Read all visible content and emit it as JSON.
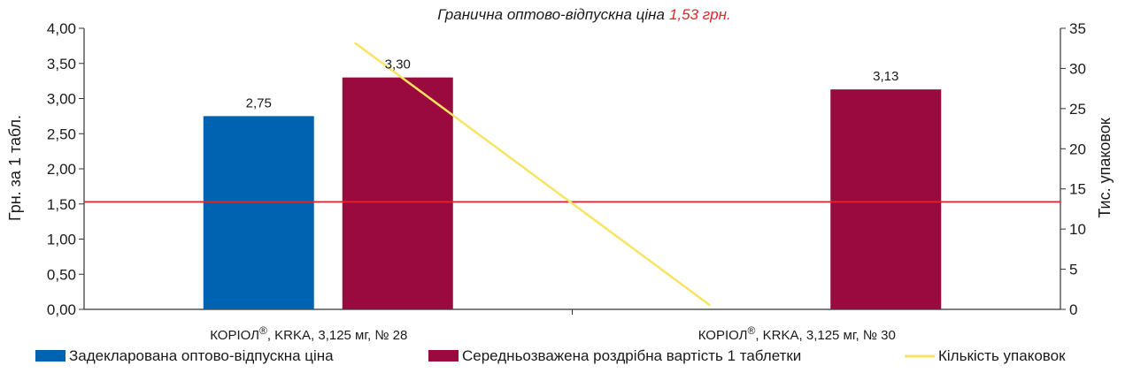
{
  "chart_data": {
    "type": "bar",
    "title": "Гранична оптово-відпускна ціна",
    "title_value": "1,53 грн.",
    "title_value_color": "#e8202a",
    "ylabel": "Грн. за 1 табл.",
    "y2label": "Тис. упаковок",
    "ylim": [
      0,
      4
    ],
    "y2lim": [
      0,
      35
    ],
    "y_ticks": [
      "0,00",
      "0,50",
      "1,00",
      "1,50",
      "2,00",
      "2,50",
      "3,00",
      "3,50",
      "4,00"
    ],
    "y2_ticks": [
      "0",
      "5",
      "10",
      "15",
      "20",
      "25",
      "30",
      "35"
    ],
    "categories": [
      {
        "name": "КОРІОЛ",
        "mark": "®",
        "rest": ", KRKA, 3,125 мг, № 28"
      },
      {
        "name": "КОРІОЛ",
        "mark": "®",
        "rest": ", KRKA, 3,125 мг, № 30"
      }
    ],
    "series": [
      {
        "name": "Задекларована оптово-відпускна ціна",
        "kind": "bar",
        "axis": "left",
        "color": "#0063b1",
        "values": [
          2.75,
          null
        ],
        "labels": [
          "2,75",
          ""
        ]
      },
      {
        "name": "Середньозважена роздрібна вартість 1 таблетки",
        "kind": "bar",
        "axis": "left",
        "color": "#9b0a3f",
        "values": [
          3.3,
          3.13
        ],
        "labels": [
          "3,30",
          "3,13"
        ]
      },
      {
        "name": "Кількість упаковок",
        "kind": "line",
        "axis": "right",
        "color": "#f7e463",
        "values": [
          33.2,
          0.5
        ]
      }
    ],
    "reference_line": {
      "value": 1.53,
      "color": "#e8202a"
    },
    "grid": false,
    "legend_position": "bottom"
  }
}
